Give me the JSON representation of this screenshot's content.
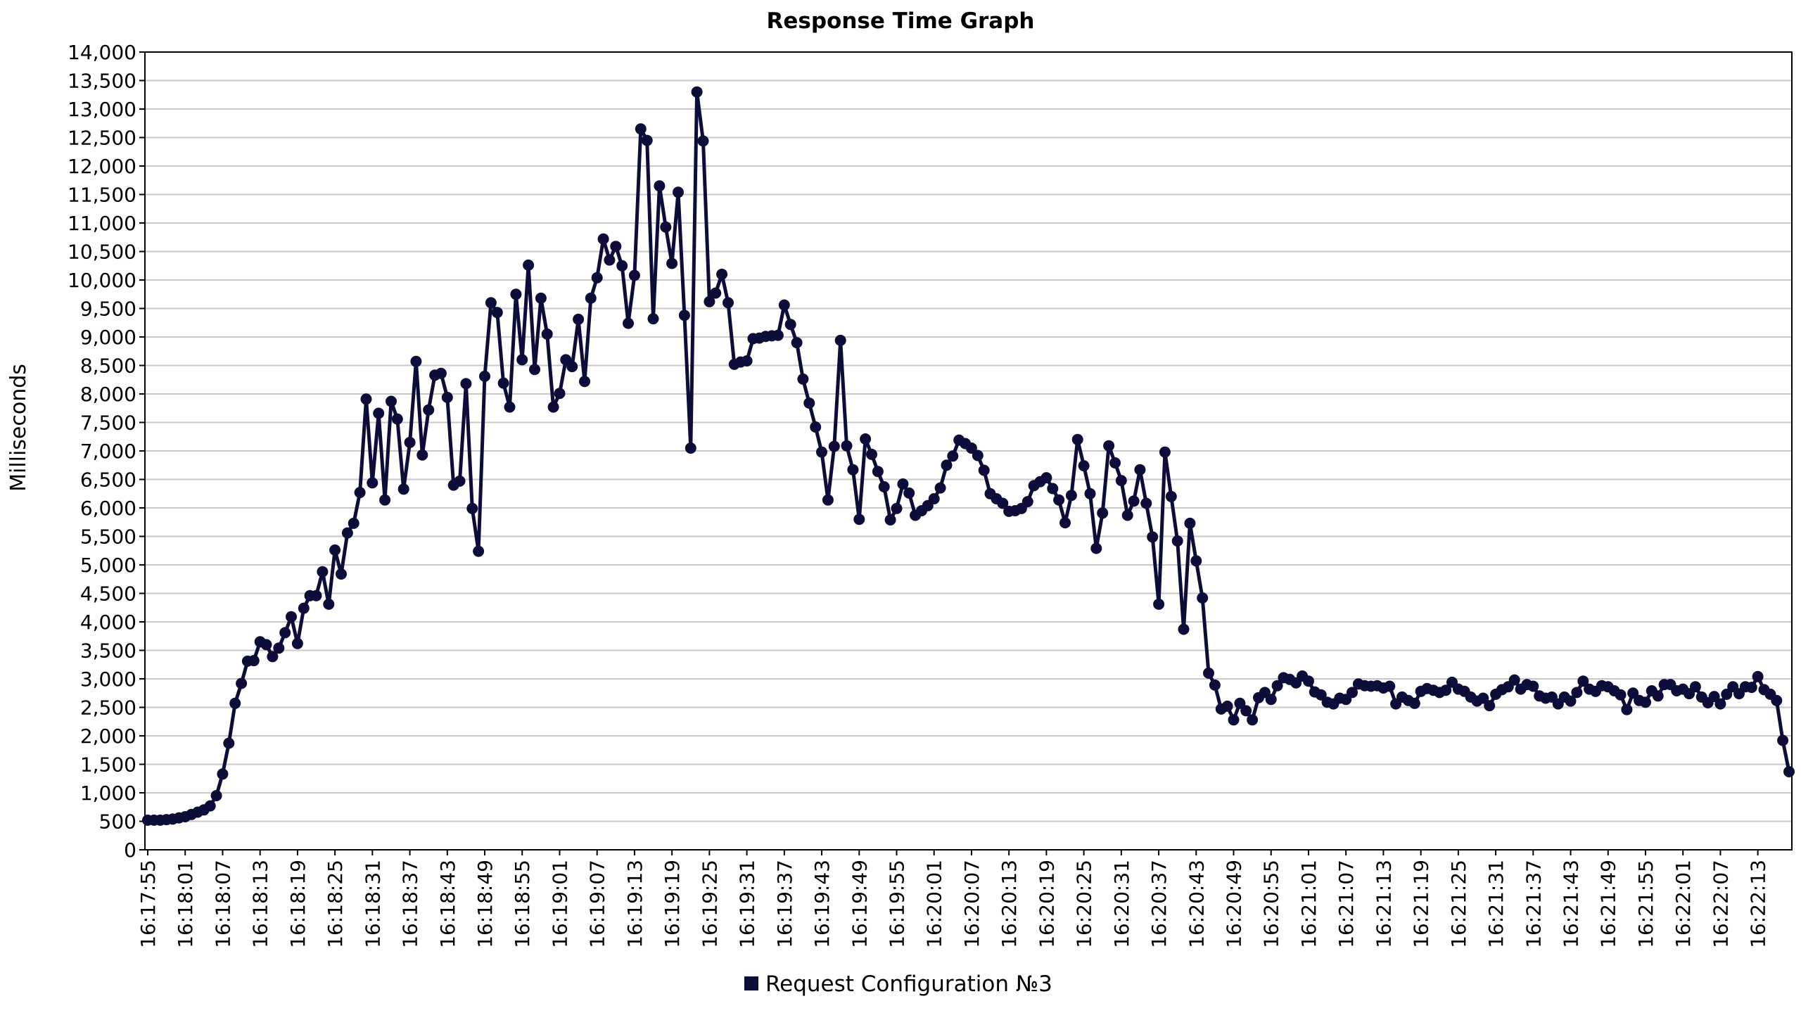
{
  "chart_data": {
    "type": "line",
    "title": "Response Time Graph",
    "xlabel": "",
    "ylabel": "Milliseconds",
    "ylim": [
      0,
      14000
    ],
    "y_ticks": [
      0,
      500,
      1000,
      1500,
      2000,
      2500,
      3000,
      3500,
      4000,
      4500,
      5000,
      5500,
      6000,
      6500,
      7000,
      7500,
      8000,
      8500,
      9000,
      9500,
      10000,
      10500,
      11000,
      11500,
      12000,
      12500,
      13000,
      13500,
      14000
    ],
    "y_tick_labels": [
      "0",
      "500",
      "1,000",
      "1,500",
      "2,000",
      "2,500",
      "3,000",
      "3,500",
      "4,000",
      "4,500",
      "5,000",
      "5,500",
      "6,000",
      "6,500",
      "7,000",
      "7,500",
      "8,000",
      "8,500",
      "9,000",
      "9,500",
      "10,000",
      "10,500",
      "11,000",
      "11,500",
      "12,000",
      "12,500",
      "13,000",
      "13,500",
      "14,000"
    ],
    "x_tick_labels": [
      "16:17:55",
      "16:18:01",
      "16:18:07",
      "16:18:13",
      "16:18:19",
      "16:18:25",
      "16:18:31",
      "16:18:37",
      "16:18:43",
      "16:18:49",
      "16:18:55",
      "16:19:01",
      "16:19:07",
      "16:19:13",
      "16:19:19",
      "16:19:25",
      "16:19:31",
      "16:19:37",
      "16:19:43",
      "16:19:49",
      "16:19:55",
      "16:20:01",
      "16:20:07",
      "16:20:13",
      "16:20:19",
      "16:20:25",
      "16:20:31",
      "16:20:37",
      "16:20:43",
      "16:20:49",
      "16:20:55",
      "16:21:01",
      "16:21:07",
      "16:21:13",
      "16:21:19",
      "16:21:25",
      "16:21:31",
      "16:21:37",
      "16:21:43",
      "16:21:49",
      "16:21:55",
      "16:22:01",
      "16:22:07",
      "16:22:13"
    ],
    "grid": true,
    "legend": "bottom-center",
    "series": [
      {
        "name": "Request Configuration №3",
        "color": "#0d0d3a",
        "values": [
          520,
          520,
          520,
          530,
          540,
          560,
          580,
          620,
          660,
          700,
          770,
          950,
          1330,
          1870,
          2570,
          2920,
          3310,
          3320,
          3650,
          3600,
          3390,
          3540,
          3810,
          4090,
          3620,
          4240,
          4460,
          4460,
          4880,
          4310,
          5260,
          4840,
          5560,
          5730,
          6270,
          7910,
          6440,
          7660,
          6140,
          7870,
          7560,
          6330,
          7150,
          8570,
          6930,
          7720,
          8330,
          8360,
          7940,
          6400,
          6470,
          8180,
          5990,
          5240,
          8310,
          9600,
          9430,
          8190,
          7770,
          9750,
          8600,
          10260,
          8430,
          9680,
          9050,
          7770,
          8010,
          8600,
          8480,
          9310,
          8220,
          9680,
          10040,
          10720,
          10350,
          10590,
          10250,
          9240,
          10080,
          12650,
          12450,
          9320,
          11650,
          10930,
          10290,
          11540,
          9380,
          7050,
          13300,
          12440,
          9620,
          9770,
          10100,
          9600,
          8520,
          8560,
          8580,
          8970,
          8980,
          9010,
          9020,
          9030,
          9560,
          9220,
          8900,
          8260,
          7840,
          7420,
          6980,
          6140,
          7080,
          8940,
          7090,
          6670,
          5800,
          7210,
          6940,
          6640,
          6370,
          5790,
          5990,
          6420,
          6260,
          5870,
          5950,
          6040,
          6160,
          6350,
          6750,
          6910,
          7190,
          7130,
          7050,
          6920,
          6660,
          6250,
          6160,
          6080,
          5940,
          5950,
          5990,
          6110,
          6390,
          6460,
          6530,
          6340,
          6140,
          5740,
          6220,
          7200,
          6740,
          6250,
          5290,
          5910,
          7090,
          6790,
          6480,
          5870,
          6120,
          6670,
          6080,
          5490,
          4310,
          6980,
          6200,
          5420,
          3870,
          5730,
          5070,
          4420,
          3100,
          2890,
          2470,
          2520,
          2280,
          2570,
          2440,
          2280,
          2670,
          2760,
          2640,
          2880,
          3020,
          2990,
          2930,
          3050,
          2960,
          2770,
          2720,
          2590,
          2560,
          2660,
          2640,
          2760,
          2910,
          2880,
          2870,
          2880,
          2840,
          2870,
          2560,
          2680,
          2620,
          2570,
          2780,
          2830,
          2800,
          2760,
          2800,
          2940,
          2820,
          2780,
          2680,
          2610,
          2660,
          2530,
          2730,
          2810,
          2860,
          2980,
          2820,
          2900,
          2870,
          2700,
          2660,
          2680,
          2560,
          2680,
          2610,
          2760,
          2960,
          2820,
          2780,
          2880,
          2860,
          2790,
          2720,
          2460,
          2750,
          2620,
          2590,
          2790,
          2700,
          2900,
          2900,
          2790,
          2820,
          2740,
          2860,
          2680,
          2580,
          2690,
          2560,
          2730,
          2860,
          2740,
          2860,
          2850,
          3040,
          2810,
          2730,
          2620,
          1920,
          1370
        ]
      }
    ]
  }
}
